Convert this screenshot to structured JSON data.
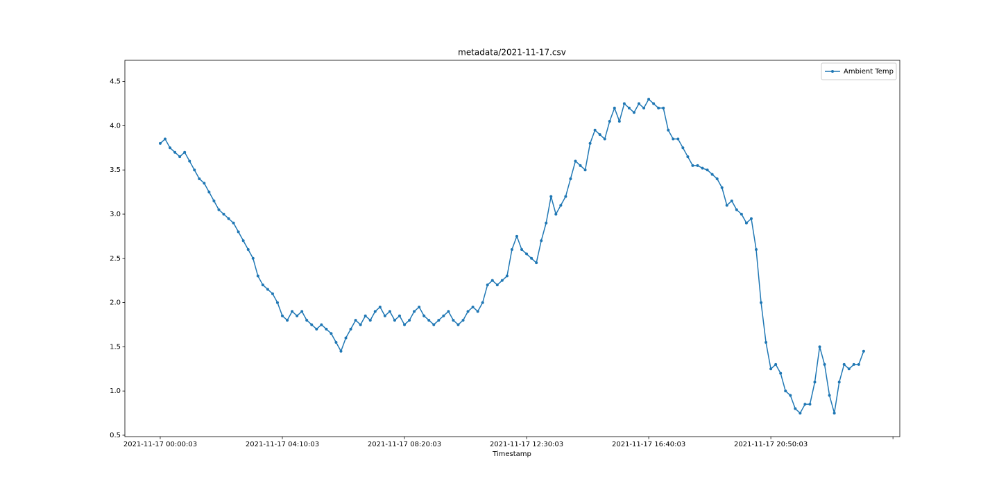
{
  "chart_data": {
    "type": "line",
    "title": "metadata/2021-11-17.csv",
    "x_label": "Timestamp",
    "x": [
      "2021-11-17 00:00:03",
      "2021-11-17 00:10:03",
      "2021-11-17 00:20:03",
      "2021-11-17 00:30:03",
      "2021-11-17 00:40:03",
      "2021-11-17 00:50:03",
      "2021-11-17 01:00:03",
      "2021-11-17 01:10:03",
      "2021-11-17 01:20:03",
      "2021-11-17 01:30:03",
      "2021-11-17 01:40:03",
      "2021-11-17 01:50:03",
      "2021-11-17 02:00:03",
      "2021-11-17 02:10:03",
      "2021-11-17 02:20:03",
      "2021-11-17 02:30:03",
      "2021-11-17 02:40:03",
      "2021-11-17 02:50:03",
      "2021-11-17 03:00:03",
      "2021-11-17 03:10:03",
      "2021-11-17 03:20:03",
      "2021-11-17 03:30:03",
      "2021-11-17 03:40:03",
      "2021-11-17 03:50:03",
      "2021-11-17 04:00:03",
      "2021-11-17 04:10:03",
      "2021-11-17 04:20:03",
      "2021-11-17 04:30:03",
      "2021-11-17 04:40:03",
      "2021-11-17 04:50:03",
      "2021-11-17 05:00:03",
      "2021-11-17 05:10:03",
      "2021-11-17 05:20:03",
      "2021-11-17 05:30:03",
      "2021-11-17 05:40:03",
      "2021-11-17 05:50:03",
      "2021-11-17 06:00:03",
      "2021-11-17 06:10:03",
      "2021-11-17 06:20:03",
      "2021-11-17 06:30:03",
      "2021-11-17 06:40:03",
      "2021-11-17 06:50:03",
      "2021-11-17 07:00:03",
      "2021-11-17 07:10:03",
      "2021-11-17 07:20:03",
      "2021-11-17 07:30:03",
      "2021-11-17 07:40:03",
      "2021-11-17 07:50:03",
      "2021-11-17 08:00:03",
      "2021-11-17 08:10:03",
      "2021-11-17 08:20:03",
      "2021-11-17 08:30:03",
      "2021-11-17 08:40:03",
      "2021-11-17 08:50:03",
      "2021-11-17 09:00:03",
      "2021-11-17 09:10:03",
      "2021-11-17 09:20:03",
      "2021-11-17 09:30:03",
      "2021-11-17 09:40:03",
      "2021-11-17 09:50:03",
      "2021-11-17 10:00:03",
      "2021-11-17 10:10:03",
      "2021-11-17 10:20:03",
      "2021-11-17 10:30:03",
      "2021-11-17 10:40:03",
      "2021-11-17 10:50:03",
      "2021-11-17 11:00:03",
      "2021-11-17 11:10:03",
      "2021-11-17 11:20:03",
      "2021-11-17 11:30:03",
      "2021-11-17 11:40:03",
      "2021-11-17 11:50:03",
      "2021-11-17 12:00:03",
      "2021-11-17 12:10:03",
      "2021-11-17 12:20:03",
      "2021-11-17 12:30:03",
      "2021-11-17 12:40:03",
      "2021-11-17 12:50:03",
      "2021-11-17 13:00:03",
      "2021-11-17 13:10:03",
      "2021-11-17 13:20:03",
      "2021-11-17 13:30:03",
      "2021-11-17 13:40:03",
      "2021-11-17 13:50:03",
      "2021-11-17 14:00:03",
      "2021-11-17 14:10:03",
      "2021-11-17 14:20:03",
      "2021-11-17 14:30:03",
      "2021-11-17 14:40:03",
      "2021-11-17 14:50:03",
      "2021-11-17 15:00:03",
      "2021-11-17 15:10:03",
      "2021-11-17 15:20:03",
      "2021-11-17 15:30:03",
      "2021-11-17 15:40:03",
      "2021-11-17 15:50:03",
      "2021-11-17 16:00:03",
      "2021-11-17 16:10:03",
      "2021-11-17 16:20:03",
      "2021-11-17 16:30:03",
      "2021-11-17 16:40:03",
      "2021-11-17 16:50:03",
      "2021-11-17 17:00:03",
      "2021-11-17 17:10:03",
      "2021-11-17 17:20:03",
      "2021-11-17 17:30:03",
      "2021-11-17 17:40:03",
      "2021-11-17 17:50:03",
      "2021-11-17 18:00:03",
      "2021-11-17 18:10:03",
      "2021-11-17 18:20:03",
      "2021-11-17 18:30:03",
      "2021-11-17 18:40:03",
      "2021-11-17 18:50:03",
      "2021-11-17 19:00:03",
      "2021-11-17 19:10:03",
      "2021-11-17 19:20:03",
      "2021-11-17 19:30:03",
      "2021-11-17 19:40:03",
      "2021-11-17 19:50:03",
      "2021-11-17 20:00:03",
      "2021-11-17 20:10:03",
      "2021-11-17 20:20:03",
      "2021-11-17 20:30:03",
      "2021-11-17 20:40:03",
      "2021-11-17 20:50:03",
      "2021-11-17 21:00:03",
      "2021-11-17 21:10:03",
      "2021-11-17 21:20:03",
      "2021-11-17 21:30:03",
      "2021-11-17 21:40:03",
      "2021-11-17 21:50:03",
      "2021-11-17 22:00:03",
      "2021-11-17 22:10:03",
      "2021-11-17 22:20:03",
      "2021-11-17 22:30:03",
      "2021-11-17 22:40:03",
      "2021-11-17 22:50:03",
      "2021-11-17 23:00:03",
      "2021-11-17 23:10:03",
      "2021-11-17 23:20:03",
      "2021-11-17 23:30:03",
      "2021-11-17 23:40:03",
      "2021-11-17 23:50:03",
      "2021-11-18 00:00:03"
    ],
    "series": [
      {
        "name": "Ambient Temp",
        "color": "#1f77b4",
        "values": [
          3.8,
          3.85,
          3.75,
          3.7,
          3.65,
          3.7,
          3.6,
          3.5,
          3.4,
          3.35,
          3.25,
          3.15,
          3.05,
          3.0,
          2.95,
          2.9,
          2.8,
          2.7,
          2.6,
          2.5,
          2.3,
          2.2,
          2.15,
          2.1,
          2.0,
          1.85,
          1.8,
          1.9,
          1.85,
          1.9,
          1.8,
          1.75,
          1.7,
          1.75,
          1.7,
          1.65,
          1.55,
          1.45,
          1.6,
          1.7,
          1.8,
          1.75,
          1.85,
          1.8,
          1.9,
          1.95,
          1.85,
          1.9,
          1.8,
          1.85,
          1.75,
          1.8,
          1.9,
          1.95,
          1.85,
          1.8,
          1.75,
          1.8,
          1.85,
          1.9,
          1.8,
          1.75,
          1.8,
          1.9,
          1.95,
          1.9,
          2.0,
          2.2,
          2.25,
          2.2,
          2.25,
          2.3,
          2.6,
          2.75,
          2.6,
          2.55,
          2.5,
          2.45,
          2.7,
          2.9,
          3.2,
          3.0,
          3.1,
          3.2,
          3.4,
          3.6,
          3.55,
          3.5,
          3.8,
          3.95,
          3.9,
          3.85,
          4.05,
          4.2,
          4.05,
          4.25,
          4.2,
          4.15,
          4.25,
          4.2,
          4.3,
          4.25,
          4.2,
          4.2,
          3.95,
          3.85,
          3.85,
          3.75,
          3.65,
          3.55,
          3.55,
          3.52,
          3.5,
          3.45,
          3.4,
          3.3,
          3.1,
          3.15,
          3.05,
          3.0,
          2.9,
          2.95,
          2.6,
          2.0,
          1.55,
          1.25,
          1.3,
          1.2,
          1.0,
          0.95,
          0.8,
          0.75,
          0.85,
          0.85,
          1.1,
          1.5,
          1.3,
          0.95,
          0.75,
          1.1,
          1.3,
          1.25,
          1.3,
          1.3,
          1.45
        ]
      }
    ],
    "xlim": [
      "2021-11-16 22:47:40",
      "2021-11-18 01:14:03"
    ],
    "xticks": [
      "2021-11-17 00:00:03",
      "2021-11-17 04:10:03",
      "2021-11-17 08:20:03",
      "2021-11-17 12:30:03",
      "2021-11-17 16:40:03",
      "2021-11-17 20:50:03",
      {
        "value": "2021-11-18 01:00:03",
        "label": null
      }
    ],
    "ylim": [
      0.484,
      4.74
    ],
    "yticks": [
      0.5,
      {
        "value": 1,
        "label": "1.0"
      },
      1.5,
      {
        "value": 2,
        "label": "2.0"
      },
      2.5,
      {
        "value": 3,
        "label": "3.0"
      },
      3.5,
      {
        "value": 4,
        "label": "4.0"
      },
      4.5
    ],
    "grid": false,
    "legend": "upper right"
  }
}
